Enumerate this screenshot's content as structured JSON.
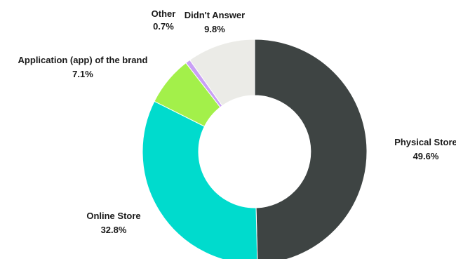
{
  "chart_data": {
    "type": "pie",
    "donut": true,
    "legend": "none",
    "labels_placement": "outside",
    "slices": [
      {
        "name": "Physical Store",
        "value": 49.6,
        "value_label": "49.6%",
        "color": "#3e4443"
      },
      {
        "name": "Online Store",
        "value": 32.8,
        "value_label": "32.8%",
        "color": "#00dbcd"
      },
      {
        "name": "Application (app) of the brand",
        "value": 7.1,
        "value_label": "7.1%",
        "color": "#a3f04a"
      },
      {
        "name": "Other",
        "value": 0.7,
        "value_label": "0.7%",
        "color": "#c9a0f5"
      },
      {
        "name": "Didn't Answer",
        "value": 9.8,
        "value_label": "9.8%",
        "color": "#ebebe7"
      }
    ]
  }
}
